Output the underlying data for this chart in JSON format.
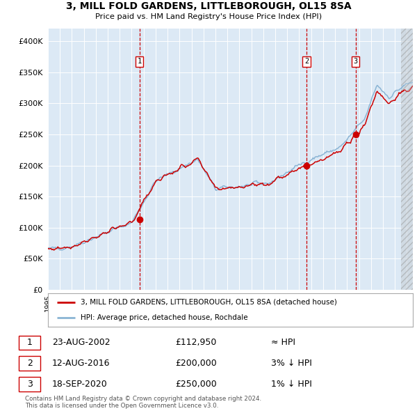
{
  "title": "3, MILL FOLD GARDENS, LITTLEBOROUGH, OL15 8SA",
  "subtitle": "Price paid vs. HM Land Registry's House Price Index (HPI)",
  "background_color": "#ffffff",
  "plot_bg_color": "#dce9f5",
  "hpi_line_color": "#8ab4d4",
  "price_line_color": "#cc0000",
  "marker_color": "#cc0000",
  "vline_color": "#cc0000",
  "grid_color": "#c8d8e8",
  "ylim": [
    0,
    420000
  ],
  "yticks": [
    0,
    50000,
    100000,
    150000,
    200000,
    250000,
    300000,
    350000,
    400000
  ],
  "sale_points": [
    {
      "date_num": 2002.64,
      "price": 112950,
      "label": "1"
    },
    {
      "date_num": 2016.61,
      "price": 200000,
      "label": "2"
    },
    {
      "date_num": 2020.72,
      "price": 250000,
      "label": "3"
    }
  ],
  "legend_property_label": "3, MILL FOLD GARDENS, LITTLEBOROUGH, OL15 8SA (detached house)",
  "legend_hpi_label": "HPI: Average price, detached house, Rochdale",
  "table_rows": [
    {
      "num": "1",
      "date": "23-AUG-2002",
      "price": "£112,950",
      "rel": "≈ HPI"
    },
    {
      "num": "2",
      "date": "12-AUG-2016",
      "price": "£200,000",
      "rel": "3% ↓ HPI"
    },
    {
      "num": "3",
      "date": "18-SEP-2020",
      "price": "£250,000",
      "rel": "1% ↓ HPI"
    }
  ],
  "footnote": "Contains HM Land Registry data © Crown copyright and database right 2024.\nThis data is licensed under the Open Government Licence v3.0.",
  "xmin": 1995.0,
  "xmax": 2025.5,
  "hatch_start": 2024.5
}
